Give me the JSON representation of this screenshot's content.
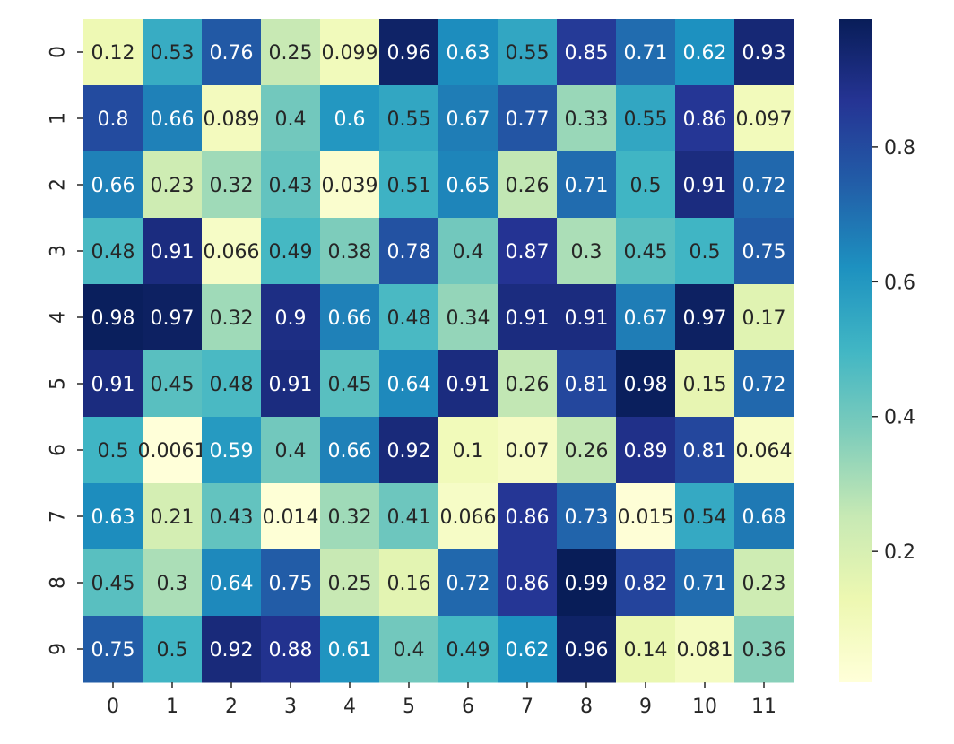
{
  "chart_data": {
    "type": "heatmap",
    "title": "",
    "xlabel": "",
    "ylabel": "",
    "x_categories": [
      "0",
      "1",
      "2",
      "3",
      "4",
      "5",
      "6",
      "7",
      "8",
      "9",
      "10",
      "11"
    ],
    "y_categories": [
      "0",
      "1",
      "2",
      "3",
      "4",
      "5",
      "6",
      "7",
      "8",
      "9"
    ],
    "values": [
      [
        0.12,
        0.53,
        0.76,
        0.25,
        0.099,
        0.96,
        0.63,
        0.55,
        0.85,
        0.71,
        0.62,
        0.93
      ],
      [
        0.8,
        0.66,
        0.089,
        0.4,
        0.6,
        0.55,
        0.67,
        0.77,
        0.33,
        0.55,
        0.86,
        0.097
      ],
      [
        0.66,
        0.23,
        0.32,
        0.43,
        0.039,
        0.51,
        0.65,
        0.26,
        0.71,
        0.5,
        0.91,
        0.72
      ],
      [
        0.48,
        0.91,
        0.066,
        0.49,
        0.38,
        0.78,
        0.4,
        0.87,
        0.3,
        0.45,
        0.5,
        0.75
      ],
      [
        0.98,
        0.97,
        0.32,
        0.9,
        0.66,
        0.48,
        0.34,
        0.91,
        0.91,
        0.67,
        0.97,
        0.17
      ],
      [
        0.91,
        0.45,
        0.48,
        0.91,
        0.45,
        0.64,
        0.91,
        0.26,
        0.81,
        0.98,
        0.15,
        0.72
      ],
      [
        0.5,
        0.0061,
        0.59,
        0.4,
        0.66,
        0.92,
        0.1,
        0.07,
        0.26,
        0.89,
        0.81,
        0.064
      ],
      [
        0.63,
        0.21,
        0.43,
        0.014,
        0.32,
        0.41,
        0.066,
        0.86,
        0.73,
        0.015,
        0.54,
        0.68
      ],
      [
        0.45,
        0.3,
        0.64,
        0.75,
        0.25,
        0.16,
        0.72,
        0.86,
        0.99,
        0.82,
        0.71,
        0.23
      ],
      [
        0.75,
        0.5,
        0.92,
        0.88,
        0.61,
        0.4,
        0.49,
        0.62,
        0.96,
        0.14,
        0.081,
        0.36
      ]
    ],
    "colormap": "YlGnBu",
    "colorbar": {
      "range": [
        0.0061,
        0.99
      ],
      "ticks": [
        0.2,
        0.4,
        0.6,
        0.8
      ],
      "tick_labels": [
        "0.2",
        "0.4",
        "0.6",
        "0.8"
      ]
    },
    "annotate": true,
    "grid": false,
    "legend": "colorbar right"
  }
}
